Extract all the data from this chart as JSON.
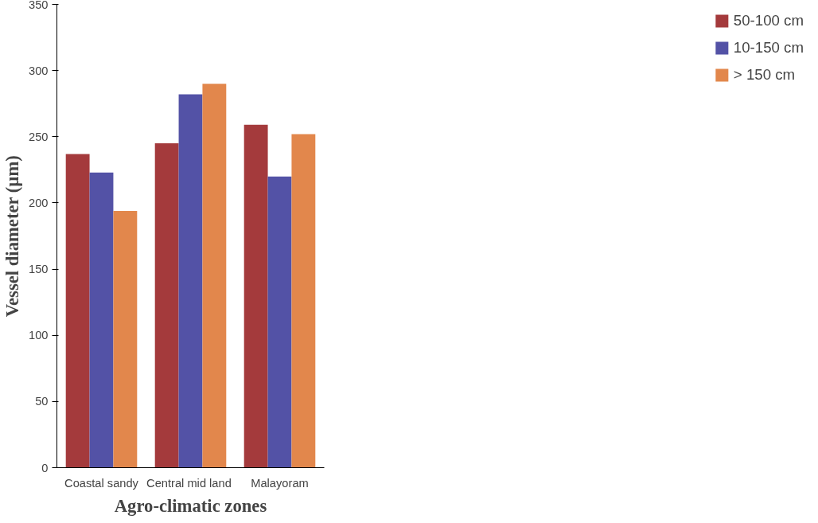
{
  "chart_data": {
    "type": "bar",
    "xlabel": "Agro-climatic zones",
    "ylabel": "Vessel diameter (µm)",
    "categories": [
      "Coastal sandy",
      "Central mid  land",
      "Malayoram"
    ],
    "series": [
      {
        "name": "50-100 cm",
        "color": "#a43a3c",
        "values": [
          237,
          245,
          259
        ]
      },
      {
        "name": "10-150 cm",
        "color": "#5352a6",
        "values": [
          223,
          282,
          220
        ]
      },
      {
        "name": "> 150 cm",
        "color": "#e2874c",
        "values": [
          194,
          290,
          252
        ]
      }
    ],
    "ylim": [
      0,
      350
    ],
    "yticks": [
      0,
      50,
      100,
      150,
      200,
      250,
      300,
      350
    ],
    "grid": false,
    "legend": "right"
  }
}
